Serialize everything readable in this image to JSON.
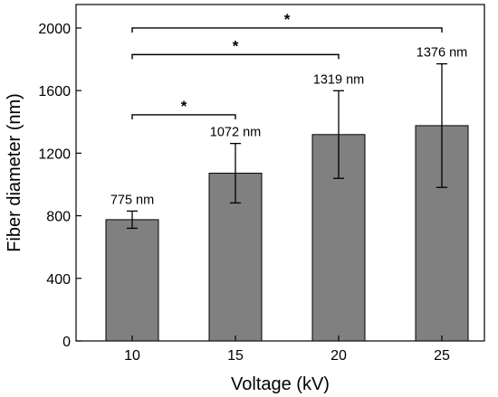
{
  "chart_data": {
    "type": "bar",
    "categories": [
      "10",
      "15",
      "20",
      "25"
    ],
    "values": [
      775,
      1072,
      1319,
      1376
    ],
    "errors": [
      55,
      190,
      280,
      395
    ],
    "value_labels": [
      "775 nm",
      "1072 nm",
      "1319 nm",
      "1376 nm"
    ],
    "xlabel": "Voltage (kV)",
    "ylabel": "Fiber diameter (nm)",
    "ylim": [
      0,
      2150
    ],
    "yticks": [
      0,
      400,
      800,
      1200,
      1600,
      2000
    ],
    "grid": false,
    "legend": "none",
    "bar_color": "#808080",
    "significance": [
      {
        "from": 0,
        "to": 1,
        "label": "*",
        "level": 1445
      },
      {
        "from": 0,
        "to": 2,
        "label": "*",
        "level": 1830
      },
      {
        "from": 0,
        "to": 3,
        "label": "*",
        "level": 2000
      }
    ]
  }
}
